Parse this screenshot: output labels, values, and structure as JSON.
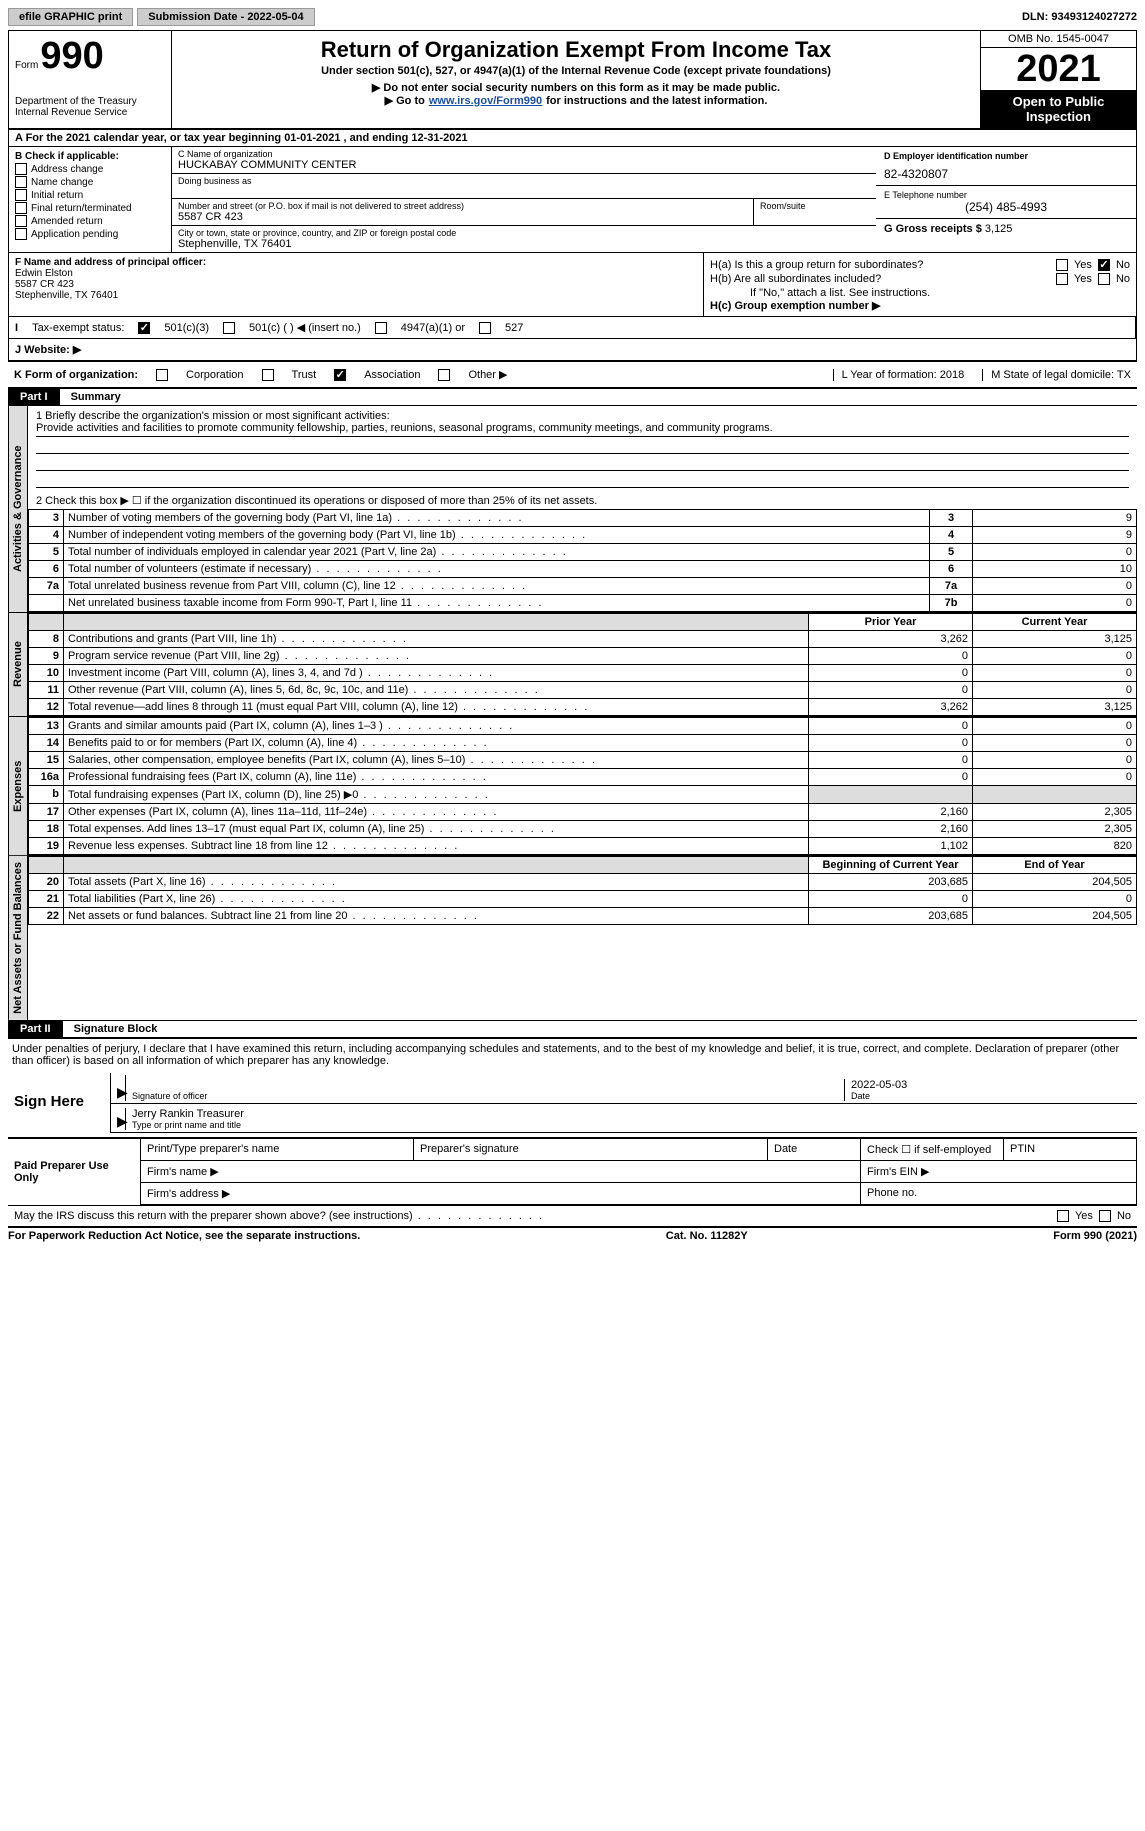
{
  "top": {
    "efile": "efile GRAPHIC print",
    "submission": "Submission Date - 2022-05-04",
    "dln": "DLN: 93493124027272"
  },
  "header": {
    "form_word": "Form",
    "form_num": "990",
    "dept": "Department of the Treasury\nInternal Revenue Service",
    "title": "Return of Organization Exempt From Income Tax",
    "sub1": "Under section 501(c), 527, or 4947(a)(1) of the Internal Revenue Code (except private foundations)",
    "sub2": "▶ Do not enter social security numbers on this form as it may be made public.",
    "sub3_pre": "▶ Go to ",
    "sub3_link": "www.irs.gov/Form990",
    "sub3_post": " for instructions and the latest information.",
    "omb": "OMB No. 1545-0047",
    "year": "2021",
    "open": "Open to Public Inspection"
  },
  "rowA": "A    For the 2021 calendar year, or tax year beginning 01-01-2021     , and ending 12-31-2021",
  "colB": {
    "header": "B Check if applicable:",
    "items": [
      "Address change",
      "Name change",
      "Initial return",
      "Final return/terminated",
      "Amended return",
      "Application pending"
    ]
  },
  "colC": {
    "name_label": "C Name of organization",
    "name": "HUCKABAY COMMUNITY CENTER",
    "dba_label": "Doing business as",
    "addr_label": "Number and street (or P.O. box if mail is not delivered to street address)",
    "room_label": "Room/suite",
    "addr": "5587 CR 423",
    "city_label": "City or town, state or province, country, and ZIP or foreign postal code",
    "city": "Stephenville, TX  76401"
  },
  "colD": {
    "ein_label": "D Employer identification number",
    "ein": "82-4320807",
    "tel_label": "E Telephone number",
    "tel": "(254) 485-4993",
    "gross_label": "G Gross receipts $",
    "gross": "3,125"
  },
  "colF": {
    "label": "F Name and address of principal officer:",
    "name": "Edwin Elston",
    "addr1": "5587 CR 423",
    "addr2": "Stephenville, TX  76401"
  },
  "colH": {
    "a_label": "H(a)  Is this a group return for subordinates?",
    "a_no_checked": true,
    "b_label": "H(b)  Are all subordinates included?",
    "b_note": "If \"No,\" attach a list. See instructions.",
    "c_label": "H(c)  Group exemption number ▶"
  },
  "rowI": {
    "label": "Tax-exempt status:",
    "opt1": "501(c)(3)",
    "opt1_checked": true,
    "opt2": "501(c) (  ) ◀ (insert no.)",
    "opt3": "4947(a)(1) or",
    "opt4": "527"
  },
  "rowJ": "J    Website: ▶",
  "rowK": {
    "label": "K Form of organization:",
    "opts": [
      "Corporation",
      "Trust",
      "Association",
      "Other ▶"
    ],
    "checked_idx": 2,
    "L": "L Year of formation: 2018",
    "M": "M State of legal domicile: TX"
  },
  "part1": {
    "header": "Part I",
    "title": "Summary",
    "q1_label": "1  Briefly describe the organization's mission or most significant activities:",
    "q1_text": "Provide activities and facilities to promote community fellowship, parties, reunions, seasonal programs, community meetings, and community programs.",
    "q2": "2   Check this box ▶ ☐  if the organization discontinued its operations or disposed of more than 25% of its net assets.",
    "rows_gov": [
      {
        "n": "3",
        "desc": "Number of voting members of the governing body (Part VI, line 1a)",
        "box": "3",
        "val": "9"
      },
      {
        "n": "4",
        "desc": "Number of independent voting members of the governing body (Part VI, line 1b)",
        "box": "4",
        "val": "9"
      },
      {
        "n": "5",
        "desc": "Total number of individuals employed in calendar year 2021 (Part V, line 2a)",
        "box": "5",
        "val": "0"
      },
      {
        "n": "6",
        "desc": "Total number of volunteers (estimate if necessary)",
        "box": "6",
        "val": "10"
      },
      {
        "n": "7a",
        "desc": "Total unrelated business revenue from Part VIII, column (C), line 12",
        "box": "7a",
        "val": "0"
      },
      {
        "n": "",
        "desc": "Net unrelated business taxable income from Form 990-T, Part I, line 11",
        "box": "7b",
        "val": "0"
      }
    ],
    "col_prior": "Prior Year",
    "col_current": "Current Year",
    "rows_rev": [
      {
        "n": "8",
        "desc": "Contributions and grants (Part VIII, line 1h)",
        "prior": "3,262",
        "cur": "3,125"
      },
      {
        "n": "9",
        "desc": "Program service revenue (Part VIII, line 2g)",
        "prior": "0",
        "cur": "0"
      },
      {
        "n": "10",
        "desc": "Investment income (Part VIII, column (A), lines 3, 4, and 7d )",
        "prior": "0",
        "cur": "0"
      },
      {
        "n": "11",
        "desc": "Other revenue (Part VIII, column (A), lines 5, 6d, 8c, 9c, 10c, and 11e)",
        "prior": "0",
        "cur": "0"
      },
      {
        "n": "12",
        "desc": "Total revenue—add lines 8 through 11 (must equal Part VIII, column (A), line 12)",
        "prior": "3,262",
        "cur": "3,125"
      }
    ],
    "rows_exp": [
      {
        "n": "13",
        "desc": "Grants and similar amounts paid (Part IX, column (A), lines 1–3 )",
        "prior": "0",
        "cur": "0"
      },
      {
        "n": "14",
        "desc": "Benefits paid to or for members (Part IX, column (A), line 4)",
        "prior": "0",
        "cur": "0"
      },
      {
        "n": "15",
        "desc": "Salaries, other compensation, employee benefits (Part IX, column (A), lines 5–10)",
        "prior": "0",
        "cur": "0"
      },
      {
        "n": "16a",
        "desc": "Professional fundraising fees (Part IX, column (A), line 11e)",
        "prior": "0",
        "cur": "0"
      },
      {
        "n": "b",
        "desc": "Total fundraising expenses (Part IX, column (D), line 25) ▶0",
        "prior": "",
        "cur": "",
        "shade": true
      },
      {
        "n": "17",
        "desc": "Other expenses (Part IX, column (A), lines 11a–11d, 11f–24e)",
        "prior": "2,160",
        "cur": "2,305"
      },
      {
        "n": "18",
        "desc": "Total expenses. Add lines 13–17 (must equal Part IX, column (A), line 25)",
        "prior": "2,160",
        "cur": "2,305"
      },
      {
        "n": "19",
        "desc": "Revenue less expenses. Subtract line 18 from line 12",
        "prior": "1,102",
        "cur": "820"
      }
    ],
    "col_begin": "Beginning of Current Year",
    "col_end": "End of Year",
    "rows_net": [
      {
        "n": "20",
        "desc": "Total assets (Part X, line 16)",
        "prior": "203,685",
        "cur": "204,505"
      },
      {
        "n": "21",
        "desc": "Total liabilities (Part X, line 26)",
        "prior": "0",
        "cur": "0"
      },
      {
        "n": "22",
        "desc": "Net assets or fund balances. Subtract line 21 from line 20",
        "prior": "203,685",
        "cur": "204,505"
      }
    ],
    "tabs": {
      "gov": "Activities & Governance",
      "rev": "Revenue",
      "exp": "Expenses",
      "net": "Net Assets or Fund Balances"
    }
  },
  "part2": {
    "header": "Part II",
    "title": "Signature Block",
    "penalty": "Under penalties of perjury, I declare that I have examined this return, including accompanying schedules and statements, and to the best of my knowledge and belief, it is true, correct, and complete. Declaration of preparer (other than officer) is based on all information of which preparer has any knowledge.",
    "sign_here": "Sign Here",
    "sig_officer": "Signature of officer",
    "sig_date": "2022-05-03",
    "sig_name": "Jerry Rankin  Treasurer",
    "sig_name_label": "Type or print name and title",
    "date_label": "Date"
  },
  "prep": {
    "label": "Paid Preparer Use Only",
    "h1": "Print/Type preparer's name",
    "h2": "Preparer's signature",
    "h3": "Date",
    "h4": "Check ☐ if self-employed",
    "h5": "PTIN",
    "firm_name": "Firm's name     ▶",
    "firm_ein": "Firm's EIN ▶",
    "firm_addr": "Firm's address ▶",
    "phone": "Phone no."
  },
  "footer": {
    "q": "May the IRS discuss this return with the preparer shown above? (see instructions)",
    "notice": "For Paperwork Reduction Act Notice, see the separate instructions.",
    "cat": "Cat. No. 11282Y",
    "form": "Form 990 (2021)"
  }
}
